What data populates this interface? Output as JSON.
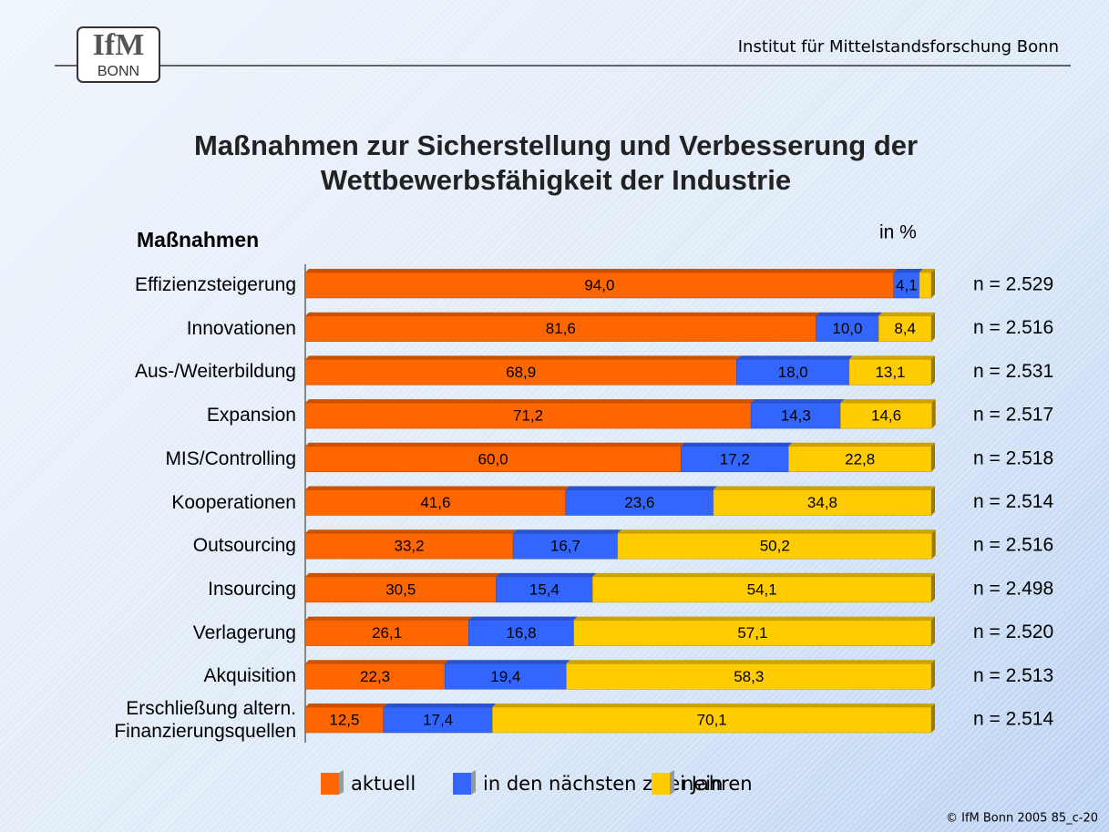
{
  "header": {
    "institute": "Institut für Mittelstandsforschung Bonn",
    "logo_top": "IfM",
    "logo_bottom": "BONN"
  },
  "chart_data": {
    "type": "stacked-bar-horizontal",
    "title": [
      "Maßnahmen zur Sicherstellung und Verbesserung der",
      "Wettbewerbsfähigkeit der Industrie"
    ],
    "category_axis_label": "Maßnahmen",
    "unit_label": "in %",
    "categories": [
      "Effizienzsteigerung",
      "Innovationen",
      "Aus-/Weiterbildung",
      "Expansion",
      "MIS/Controlling",
      "Kooperationen",
      "Outsourcing",
      "Insourcing",
      "Verlagerung",
      "Akquisition",
      "Erschließung altern.\nFinanzierungsquellen"
    ],
    "n_labels": [
      "n = 2.529",
      "n = 2.516",
      "n = 2.531",
      "n = 2.517",
      "n = 2.518",
      "n = 2.514",
      "n = 2.516",
      "n = 2.498",
      "n = 2.520",
      "n = 2.513",
      "n = 2.514"
    ],
    "xlim": [
      0,
      100
    ],
    "series": [
      {
        "name": "aktuell",
        "color": "#ff6600",
        "values": [
          94.0,
          81.6,
          68.9,
          71.2,
          60.0,
          41.6,
          33.2,
          30.5,
          26.1,
          22.3,
          12.5
        ],
        "value_labels": [
          "94,0",
          "81,6",
          "68,9",
          "71,2",
          "60,0",
          "41,6",
          "33,2",
          "30,5",
          "26,1",
          "22,3",
          "12,5"
        ]
      },
      {
        "name": "in den nächsten zwei Jahren",
        "color": "#3366ff",
        "values": [
          4.1,
          10.0,
          18.0,
          14.3,
          17.2,
          23.6,
          16.7,
          15.4,
          16.8,
          19.4,
          17.4
        ],
        "value_labels": [
          "4,1",
          "10,0",
          "18,0",
          "14,3",
          "17,2",
          "23,6",
          "16,7",
          "15,4",
          "16,8",
          "19,4",
          "17,4"
        ]
      },
      {
        "name": "nein",
        "color": "#ffcc00",
        "values": [
          1.9,
          8.4,
          13.1,
          14.6,
          22.8,
          34.8,
          50.2,
          54.1,
          57.1,
          58.3,
          70.1
        ],
        "value_labels": [
          null,
          "8,4",
          "13,1",
          "14,6",
          "22,8",
          "34,8",
          "50,2",
          "54,1",
          "57,1",
          "58,3",
          "70,1"
        ]
      }
    ]
  },
  "footer": "© IfM Bonn 2005  85_c-20"
}
